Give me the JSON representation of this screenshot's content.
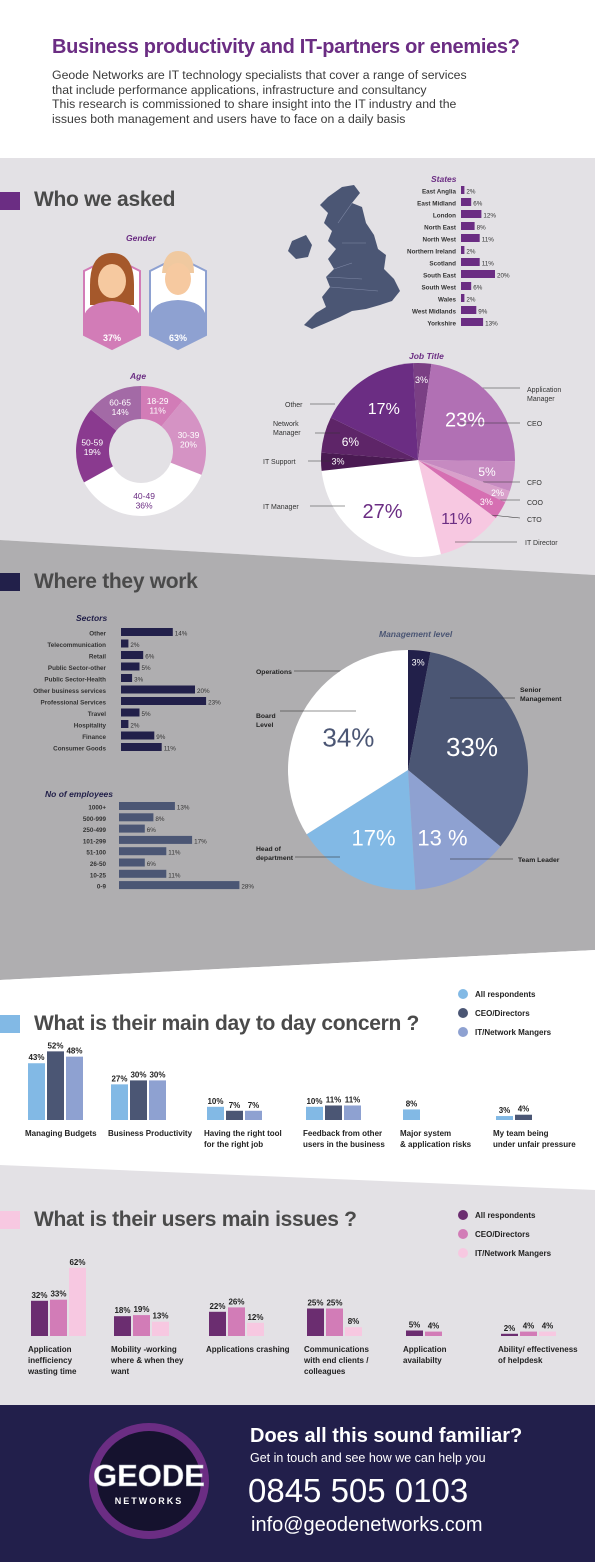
{
  "header": {
    "title": "Business productivity and IT-partners or enemies?",
    "intro_lines": [
      "Geode Networks are IT technology specialists that cover a range of services",
      "that include performance applications, infrastructure and consultancy",
      "This research is commissioned to share insight into the IT industry and the",
      "issues both management and users have to face on a daily basis"
    ]
  },
  "colors": {
    "purple": "#6b2d83",
    "navy": "#22204a",
    "slate": "#4b5674",
    "lightblue": "#82b9e5",
    "periwinkle": "#8ea1d1",
    "pink": "#f7c8e1",
    "midpink": "#d27cb7",
    "deeppurple": "#6b2d70"
  },
  "sections": {
    "who": "Who we asked",
    "where": "Where they work",
    "concern": "What is their main day to day concern ?",
    "issues": "What is their users main issues ?"
  },
  "icons": {
    "map": "uk-map-icon",
    "female": "female-avatar-icon",
    "male": "male-avatar-icon"
  },
  "chart_data": [
    {
      "id": "gender",
      "type": "bar",
      "title": "Gender",
      "categories": [
        "Female",
        "Male"
      ],
      "values": [
        37,
        63
      ],
      "value_labels": [
        "37%",
        "63%"
      ]
    },
    {
      "id": "states",
      "type": "bar",
      "title": "States",
      "categories": [
        "East Anglia",
        "East Midland",
        "London",
        "North East",
        "North West",
        "Northern Ireland",
        "Scotland",
        "South East",
        "South West",
        "Wales",
        "West Midlands",
        "Yorkshire"
      ],
      "values": [
        2,
        6,
        12,
        8,
        11,
        2,
        11,
        20,
        6,
        2,
        9,
        13
      ],
      "value_labels": [
        "2%",
        "6%",
        "12%",
        "8%",
        "11%",
        "2%",
        "11%",
        "20%",
        "6%",
        "2%",
        "9%",
        "13%"
      ]
    },
    {
      "id": "age",
      "type": "pie",
      "title": "Age",
      "donut": true,
      "slices": [
        {
          "label": "18-29",
          "value": 11,
          "display": "11%",
          "color": "#d27cb7"
        },
        {
          "label": "30-39",
          "value": 20,
          "display": "20%",
          "color": "#d593c4"
        },
        {
          "label": "40-49",
          "value": 36,
          "display": "36%",
          "color": "#ffffff"
        },
        {
          "label": "50-59",
          "value": 19,
          "display": "19%",
          "color": "#8a3a8f"
        },
        {
          "label": "60-65",
          "value": 14,
          "display": "14%",
          "color": "#a36aa6"
        }
      ]
    },
    {
      "id": "job",
      "type": "pie",
      "title": "Job Title",
      "slices": [
        {
          "label": "Application Manager",
          "value": 3,
          "display": "3%",
          "color": "#7a3f84"
        },
        {
          "label": "CEO",
          "value": 23,
          "display": "23%",
          "color": "#b170b4"
        },
        {
          "label": "CFO",
          "value": 5,
          "display": "5%",
          "color": "#c68ac1"
        },
        {
          "label": "COO",
          "value": 2,
          "display": "2%",
          "color": "#d9a0cb"
        },
        {
          "label": "CTO",
          "value": 3,
          "display": "3%",
          "color": "#d66fb2"
        },
        {
          "label": "IT Director",
          "value": 11,
          "display": "11%",
          "color": "#f7c8e1"
        },
        {
          "label": "IT Manager",
          "value": 27,
          "display": "27%",
          "color": "#ffffff"
        },
        {
          "label": "IT Support",
          "value": 3,
          "display": "3%",
          "color": "#4a1a52"
        },
        {
          "label": "Network Manager",
          "value": 6,
          "display": "6%",
          "color": "#5e2568"
        },
        {
          "label": "Other",
          "value": 17,
          "display": "17%",
          "color": "#6b2d83"
        }
      ]
    },
    {
      "id": "sectors",
      "type": "bar",
      "title": "Sectors",
      "categories": [
        "Other",
        "Telecommunication",
        "Retail",
        "Public Sector-other",
        "Public Sector-Health",
        "Other business services",
        "Professional Services",
        "Travel",
        "Hospitality",
        "Finance",
        "Consumer Goods"
      ],
      "values": [
        14,
        2,
        6,
        5,
        3,
        20,
        23,
        5,
        2,
        9,
        11
      ],
      "value_labels": [
        "14%",
        "2%",
        "6%",
        "5%",
        "3%",
        "20%",
        "23%",
        "5%",
        "2%",
        "9%",
        "11%"
      ]
    },
    {
      "id": "mgmt",
      "type": "pie",
      "title": "Management level",
      "slices": [
        {
          "label": "Operations",
          "value": 3,
          "display": "3%",
          "color": "#22204a"
        },
        {
          "label": "Senior Management",
          "value": 33,
          "display": "33%",
          "color": "#4b5674"
        },
        {
          "label": "Team Leader",
          "value": 13,
          "display": "13 %",
          "color": "#8ea1d1"
        },
        {
          "label": "Head of department",
          "value": 17,
          "display": "17%",
          "color": "#82b9e5"
        },
        {
          "label": "Board Level",
          "value": 34,
          "display": "34%",
          "color": "#ffffff"
        }
      ]
    },
    {
      "id": "employees",
      "type": "bar",
      "title": "No of employees",
      "categories": [
        "1000+",
        "500-999",
        "250-499",
        "101-299",
        "51-100",
        "26-50",
        "10-25",
        "0-9"
      ],
      "values": [
        13,
        8,
        6,
        17,
        11,
        6,
        11,
        28
      ],
      "value_labels": [
        "13%",
        "8%",
        "6%",
        "17%",
        "11%",
        "6%",
        "11%",
        "28%"
      ]
    },
    {
      "id": "concern",
      "type": "bar",
      "title": "",
      "categories": [
        "Managing Budgets",
        "Business Productivity",
        "Having the right tool for the right job",
        "Feedback from other users in the business",
        "Major system & application risks",
        "My team being under unfair pressure"
      ],
      "category_lines": [
        [
          "Managing Budgets"
        ],
        [
          "Business Productivity"
        ],
        [
          "Having the right tool",
          "for the right job"
        ],
        [
          "Feedback from other",
          "users in the business"
        ],
        [
          "Major system",
          "& application risks"
        ],
        [
          "My team being",
          "under unfair pressure"
        ]
      ],
      "series": [
        {
          "name": "All respondents",
          "values": [
            43,
            27,
            10,
            10,
            8,
            3
          ],
          "labels": [
            "43%",
            "27%",
            "10%",
            "10%",
            "8%",
            "3%"
          ],
          "color": "#82b9e5"
        },
        {
          "name": "CEO/Directors",
          "values": [
            52,
            30,
            7,
            11,
            null,
            4
          ],
          "labels": [
            "52%",
            "30%",
            "7%",
            "11%",
            "",
            "4%"
          ],
          "color": "#4b5674"
        },
        {
          "name": "IT/Network Mangers",
          "values": [
            48,
            30,
            7,
            11,
            null,
            null
          ],
          "labels": [
            "48%",
            "30%",
            "7%",
            "11%",
            "",
            ""
          ],
          "color": "#8ea1d1"
        }
      ]
    },
    {
      "id": "issues",
      "type": "bar",
      "title": "",
      "categories": [
        "Application inefficiency wasting time",
        "Mobility -working where & when they want",
        "Applications crashing",
        "Communications with end clients / colleagues",
        "Application availabilty",
        "Ability/ effectiveness of helpdesk"
      ],
      "category_lines": [
        [
          "Application",
          "inefficiency",
          "wasting time"
        ],
        [
          "Mobility -working",
          "where & when they",
          "want"
        ],
        [
          "Applications crashing"
        ],
        [
          "Communications",
          "with end clients /",
          "colleagues"
        ],
        [
          "Application",
          "availabilty"
        ],
        [
          "Ability/ effectiveness",
          "of helpdesk"
        ]
      ],
      "series": [
        {
          "name": "All respondents",
          "values": [
            32,
            18,
            22,
            25,
            5,
            2
          ],
          "labels": [
            "32%",
            "18%",
            "22%",
            "25%",
            "5%",
            "2%"
          ],
          "color": "#6b2d70"
        },
        {
          "name": "CEO/Directors",
          "values": [
            33,
            19,
            26,
            25,
            4,
            4
          ],
          "labels": [
            "33%",
            "19%",
            "26%",
            "25%",
            "4%",
            "4%"
          ],
          "color": "#d27cb7"
        },
        {
          "name": "IT/Network Mangers",
          "values": [
            62,
            13,
            12,
            8,
            null,
            4
          ],
          "labels": [
            "62%",
            "13%",
            "12%",
            "8%",
            "",
            "4%"
          ],
          "color": "#f7c8e1"
        }
      ]
    }
  ],
  "footer": {
    "logo_text": "GEODE",
    "logo_sub": "NETWORKS",
    "headline": "Does all this sound familiar?",
    "sub": "Get in touch and see how we can help you",
    "phone": "0845 505 0103",
    "email": "info@geodenetworks.com"
  }
}
